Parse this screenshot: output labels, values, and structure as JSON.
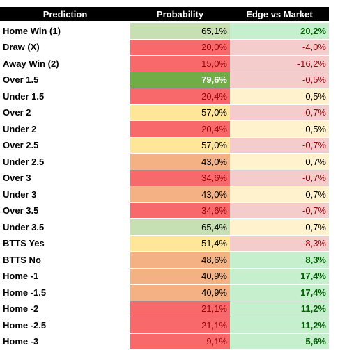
{
  "table": {
    "headers": [
      "Prediction",
      "Probability",
      "Edge vs Market"
    ],
    "rows": [
      {
        "prediction": "Home Win (1)",
        "probability": "65,1%",
        "edge": "20,2%",
        "probability_color": "#c6e0b4",
        "edge_color": "#c6efce",
        "probability_text_color": "#000000",
        "edge_text_color": "#006100"
      },
      {
        "prediction": "Draw (X)",
        "probability": "20,0%",
        "edge": "-4,0%",
        "probability_color": "#f8696b",
        "edge_color": "#f4cccc",
        "probability_text_color": "#9c0006",
        "edge_text_color": "#9c0006"
      },
      {
        "prediction": "Away Win (2)",
        "probability": "15,0%",
        "edge": "-16,2%",
        "probability_color": "#f8696b",
        "edge_color": "#f4cccc",
        "probability_text_color": "#9c0006",
        "edge_text_color": "#9c0006"
      },
      {
        "prediction": "Over 1.5",
        "probability": "79,6%",
        "edge": "-0,5%",
        "probability_color": "#70ad47",
        "edge_color": "#f4cccc",
        "probability_text_color": "#ffffff",
        "edge_text_color": "#9c0006"
      },
      {
        "prediction": "Under 1.5",
        "probability": "20,4%",
        "edge": "0,5%",
        "probability_color": "#f8696b",
        "edge_color": "#fff2cc",
        "probability_text_color": "#9c0006",
        "edge_text_color": "#000000"
      },
      {
        "prediction": "Over 2",
        "probability": "57,0%",
        "edge": "-0,7%",
        "probability_color": "#ffe699",
        "edge_color": "#f4cccc",
        "probability_text_color": "#000000",
        "edge_text_color": "#9c0006"
      },
      {
        "prediction": "Under 2",
        "probability": "20,4%",
        "edge": "0,5%",
        "probability_color": "#f8696b",
        "edge_color": "#fff2cc",
        "probability_text_color": "#9c0006",
        "edge_text_color": "#000000"
      },
      {
        "prediction": "Over 2.5",
        "probability": "57,0%",
        "edge": "-0,7%",
        "probability_color": "#ffe699",
        "edge_color": "#f4cccc",
        "probability_text_color": "#000000",
        "edge_text_color": "#9c0006"
      },
      {
        "prediction": "Under 2.5",
        "probability": "43,0%",
        "edge": "0,7%",
        "probability_color": "#f4b183",
        "edge_color": "#fff2cc",
        "probability_text_color": "#000000",
        "edge_text_color": "#000000"
      },
      {
        "prediction": "Over 3",
        "probability": "34,6%",
        "edge": "-0,7%",
        "probability_color": "#f8696b",
        "edge_color": "#f4cccc",
        "probability_text_color": "#9c0006",
        "edge_text_color": "#9c0006"
      },
      {
        "prediction": "Under 3",
        "probability": "43,0%",
        "edge": "0,7%",
        "probability_color": "#f4b183",
        "edge_color": "#fff2cc",
        "probability_text_color": "#000000",
        "edge_text_color": "#000000"
      },
      {
        "prediction": "Over 3.5",
        "probability": "34,6%",
        "edge": "-0,7%",
        "probability_color": "#f8696b",
        "edge_color": "#f4cccc",
        "probability_text_color": "#9c0006",
        "edge_text_color": "#9c0006"
      },
      {
        "prediction": "Under 3.5",
        "probability": "65,4%",
        "edge": "0,7%",
        "probability_color": "#c6e0b4",
        "edge_color": "#fff2cc",
        "probability_text_color": "#000000",
        "edge_text_color": "#000000"
      },
      {
        "prediction": "BTTS Yes",
        "probability": "51,4%",
        "edge": "-8,3%",
        "probability_color": "#ffe699",
        "edge_color": "#f4cccc",
        "probability_text_color": "#000000",
        "edge_text_color": "#9c0006"
      },
      {
        "prediction": "BTTS No",
        "probability": "48,6%",
        "edge": "8,3%",
        "probability_color": "#f4b183",
        "edge_color": "#c6efce",
        "probability_text_color": "#000000",
        "edge_text_color": "#006100"
      },
      {
        "prediction": "Home -1",
        "probability": "40,9%",
        "edge": "17,4%",
        "probability_color": "#f4b183",
        "edge_color": "#c6efce",
        "probability_text_color": "#000000",
        "edge_text_color": "#006100"
      },
      {
        "prediction": "Home -1.5",
        "probability": "40,9%",
        "edge": "17,4%",
        "probability_color": "#f4b183",
        "edge_color": "#c6efce",
        "probability_text_color": "#000000",
        "edge_text_color": "#006100"
      },
      {
        "prediction": "Home -2",
        "probability": "21,1%",
        "edge": "11,2%",
        "probability_color": "#f8696b",
        "edge_color": "#c6efce",
        "probability_text_color": "#9c0006",
        "edge_text_color": "#006100"
      },
      {
        "prediction": "Home -2.5",
        "probability": "21,1%",
        "edge": "11,2%",
        "probability_color": "#f8696b",
        "edge_color": "#c6efce",
        "probability_text_color": "#9c0006",
        "edge_text_color": "#006100"
      },
      {
        "prediction": "Home -3",
        "probability": "9,1%",
        "edge": "5,6%",
        "probability_color": "#f8696b",
        "edge_color": "#c6efce",
        "probability_text_color": "#9c0006",
        "edge_text_color": "#006100"
      }
    ]
  }
}
